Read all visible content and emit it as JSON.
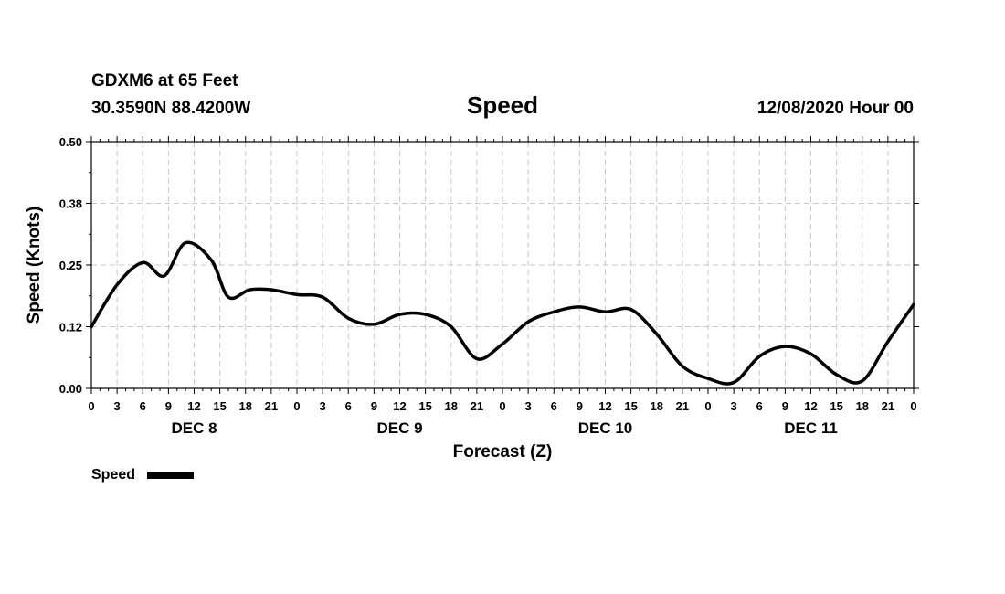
{
  "header": {
    "station": "GDXM6 at 65 Feet",
    "coords": "30.3590N 88.4200W",
    "title": "Speed",
    "date": "12/08/2020 Hour 00"
  },
  "chart_data": {
    "type": "line",
    "title": "Speed",
    "xlabel": "Forecast (Z)",
    "ylabel": "Speed (Knots)",
    "ylim": [
      0,
      0.5
    ],
    "xlim_hours": [
      0,
      96
    ],
    "grid": true,
    "yticks": [
      "0.00",
      "0.12",
      "0.25",
      "0.38",
      "0.50"
    ],
    "xticks": [
      "0",
      "3",
      "6",
      "9",
      "12",
      "15",
      "18",
      "21",
      "0",
      "3",
      "6",
      "9",
      "12",
      "15",
      "18",
      "21",
      "0",
      "3",
      "6",
      "9",
      "12",
      "15",
      "18",
      "21",
      "0",
      "3",
      "6",
      "9",
      "12",
      "15",
      "18",
      "21",
      "0"
    ],
    "day_labels": [
      "DEC 8",
      "DEC 9",
      "DEC 10",
      "DEC 11"
    ],
    "legend_position": "bottom-left",
    "series": [
      {
        "name": "Speed",
        "color": "#000000",
        "x": [
          0,
          3,
          6,
          8.5,
          11,
          14,
          16,
          18.5,
          21,
          24,
          27,
          30,
          33,
          36,
          39,
          42,
          45,
          48,
          51,
          54,
          57,
          60,
          63,
          66,
          69,
          72,
          75,
          78,
          81,
          84,
          87,
          90,
          93,
          96
        ],
        "y": [
          0.125,
          0.21,
          0.255,
          0.228,
          0.295,
          0.26,
          0.185,
          0.2,
          0.2,
          0.19,
          0.185,
          0.142,
          0.13,
          0.15,
          0.15,
          0.125,
          0.06,
          0.09,
          0.135,
          0.155,
          0.165,
          0.155,
          0.16,
          0.11,
          0.045,
          0.02,
          0.012,
          0.065,
          0.085,
          0.07,
          0.028,
          0.015,
          0.095,
          0.17
        ]
      }
    ]
  }
}
